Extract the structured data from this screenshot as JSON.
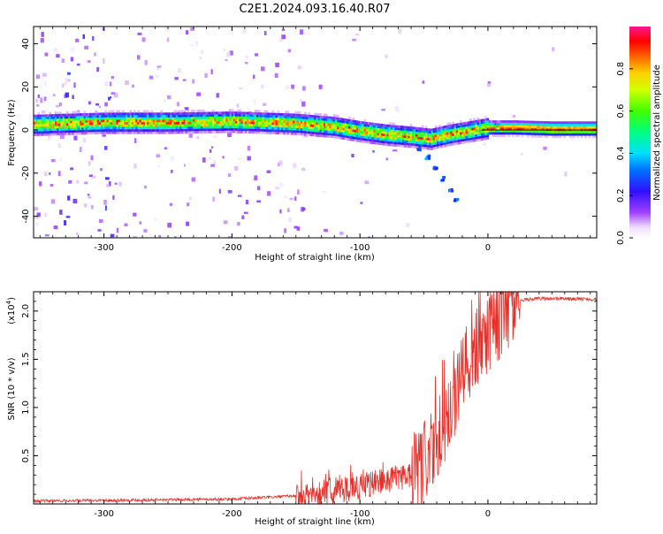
{
  "title": "C2E1.2024.093.16.40.R07",
  "chart_data": [
    {
      "type": "heatmap",
      "xlabel": "Height of straight line (km)",
      "ylabel": "Frequency (Hz)",
      "xlim": [
        -355,
        85
      ],
      "ylim": [
        -50,
        48
      ],
      "x_ticks": [
        -300,
        -200,
        -100,
        0
      ],
      "y_ticks": [
        -40,
        -20,
        0,
        20,
        40
      ],
      "colorbar": {
        "label": "Normalized spectral amplitude",
        "range": [
          0,
          1
        ],
        "ticks": [
          0.0,
          0.2,
          0.4,
          0.6,
          0.8
        ]
      },
      "ridge": [
        {
          "x": -355,
          "y": 3
        },
        {
          "x": -300,
          "y": 4
        },
        {
          "x": -250,
          "y": 4
        },
        {
          "x": -200,
          "y": 4.5
        },
        {
          "x": -150,
          "y": 3.5
        },
        {
          "x": -120,
          "y": 2
        },
        {
          "x": -100,
          "y": 0
        },
        {
          "x": -80,
          "y": -1.5
        },
        {
          "x": -60,
          "y": -2.5
        },
        {
          "x": -45,
          "y": -3.5
        },
        {
          "x": -30,
          "y": -1.5
        },
        {
          "x": -15,
          "y": 0
        },
        {
          "x": 0,
          "y": 1.5
        },
        {
          "x": 20,
          "y": 1.5
        },
        {
          "x": 50,
          "y": 1
        },
        {
          "x": 85,
          "y": 1
        }
      ],
      "branch": [
        {
          "x": -55,
          "y": -8
        },
        {
          "x": -48,
          "y": -12
        },
        {
          "x": -42,
          "y": -17
        },
        {
          "x": -36,
          "y": -22
        },
        {
          "x": -30,
          "y": -27
        },
        {
          "x": -26,
          "y": -32
        }
      ]
    },
    {
      "type": "line",
      "xlabel": "Height of straight line (km)",
      "ylabel": "SNR (10 * v/v)",
      "y_multiplier": "(x10",
      "y_multiplier_exp": "4",
      "y_multiplier_close": ")",
      "xlim": [
        -355,
        85
      ],
      "ylim": [
        0,
        22000
      ],
      "x_ticks": [
        -300,
        -200,
        -100,
        0
      ],
      "y_ticks": [
        5000,
        10000,
        15000,
        20000
      ],
      "y_tick_labels": [
        "0.5",
        "1.0",
        "1.5",
        "2.0"
      ],
      "color": "#e8302a",
      "series": [
        {
          "x": [
            -355,
            -320,
            -280,
            -240,
            -200,
            -170,
            -140,
            -120,
            -100,
            -80,
            -60,
            -50,
            -40,
            -35,
            -30,
            -25,
            -20,
            -15,
            -10,
            -5,
            0,
            10,
            20,
            25,
            30,
            40,
            60,
            85
          ],
          "values": [
            300,
            350,
            400,
            450,
            500,
            700,
            900,
            1300,
            1800,
            2500,
            3000,
            4000,
            6000,
            8000,
            10000,
            11000,
            13000,
            14500,
            15500,
            17000,
            18000,
            19500,
            20500,
            21000,
            21200,
            21300,
            21300,
            21200
          ]
        }
      ]
    }
  ]
}
